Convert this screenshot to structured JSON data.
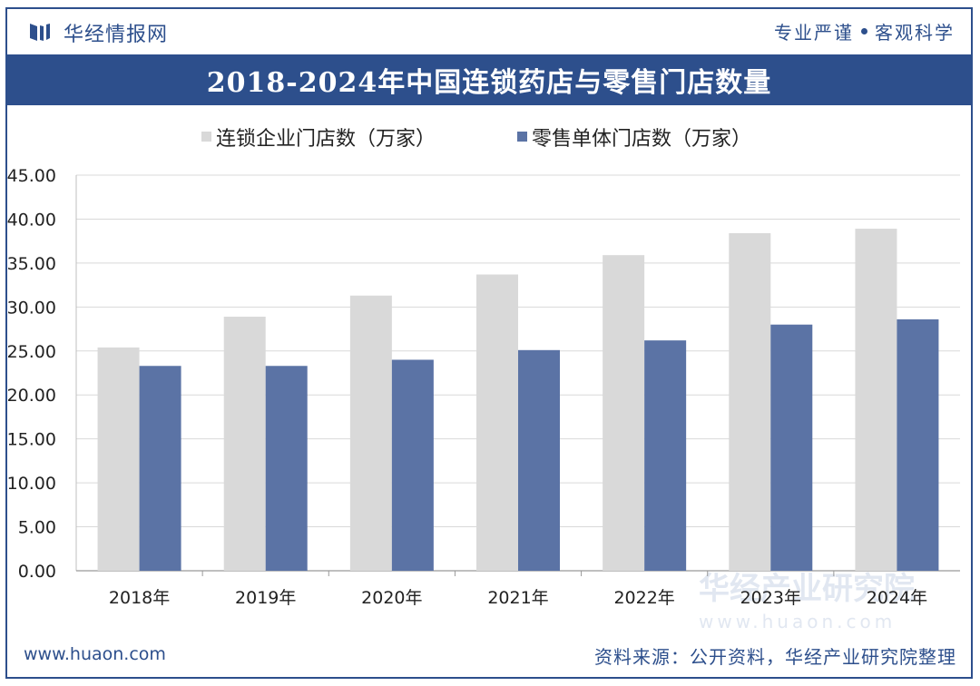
{
  "header": {
    "brand": "华经情报网",
    "slogan_left": "专业严谨",
    "slogan_right": "客观科学"
  },
  "footer": {
    "website": "www.huaon.com",
    "source": "资料来源：公开资料，华经产业研究院整理"
  },
  "watermark": {
    "name": "华经产业研究院",
    "url": "www.huaon.com"
  },
  "colors": {
    "brand": "#2d4f8c",
    "chain": "#d9d9d9",
    "single": "#5b73a5"
  },
  "chart_data": {
    "type": "bar",
    "title": "2018-2024年中国连锁药店与零售门店数量",
    "categories": [
      "2018年",
      "2019年",
      "2020年",
      "2021年",
      "2022年",
      "2023年",
      "2024年"
    ],
    "series": [
      {
        "name": "连锁企业门店数（万家）",
        "values": [
          25.4,
          28.9,
          31.3,
          33.7,
          35.9,
          38.4,
          38.9
        ]
      },
      {
        "name": "零售单体门店数（万家）",
        "values": [
          23.3,
          23.3,
          24.0,
          25.1,
          26.2,
          28.0,
          28.6
        ]
      }
    ],
    "ylim": [
      0,
      45
    ],
    "yticks": [
      "0.00",
      "5.00",
      "10.00",
      "15.00",
      "20.00",
      "25.00",
      "30.00",
      "35.00",
      "40.00",
      "45.00"
    ],
    "xlabel": "",
    "ylabel": "",
    "grid": true,
    "legend": "top-left"
  }
}
